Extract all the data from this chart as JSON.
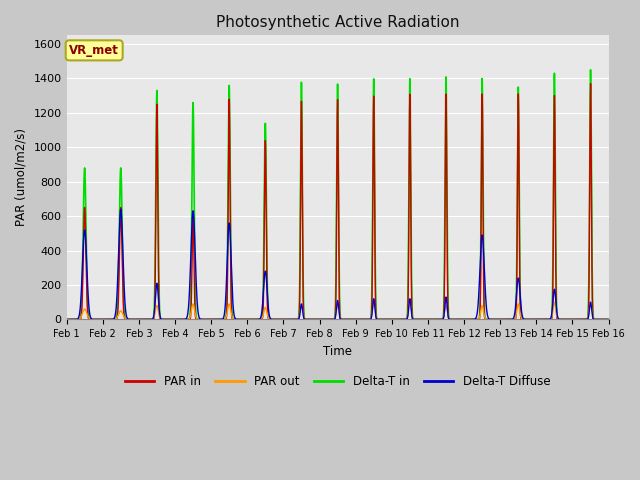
{
  "title": "Photosynthetic Active Radiation",
  "ylabel": "PAR (umol/m2/s)",
  "xlabel": "Time",
  "ylim": [
    0,
    1650
  ],
  "yticks": [
    0,
    200,
    400,
    600,
    800,
    1000,
    1200,
    1400,
    1600
  ],
  "fig_bg": "#c8c8c8",
  "axes_bg": "#e8e8e8",
  "grid_color": "#ffffff",
  "legend_labels": [
    "PAR in",
    "PAR out",
    "Delta-T in",
    "Delta-T Diffuse"
  ],
  "colors": [
    "#cc0000",
    "#ff9900",
    "#00dd00",
    "#0000cc"
  ],
  "annotation_text": "VR_met",
  "annotation_bg": "#ffff99",
  "annotation_border": "#aaa820",
  "n_days": 15,
  "par_in_peaks": [
    650,
    650,
    1250,
    630,
    1280,
    1040,
    1270,
    1280,
    1300,
    1310,
    1310,
    1310,
    1310,
    1300,
    1370
  ],
  "par_out_peaks": [
    60,
    50,
    80,
    90,
    90,
    70,
    80,
    80,
    90,
    100,
    80,
    80,
    90,
    100,
    90
  ],
  "delta_t_peaks": [
    880,
    880,
    1330,
    1260,
    1360,
    1140,
    1380,
    1370,
    1400,
    1400,
    1410,
    1400,
    1350,
    1430,
    1450
  ],
  "delta_d_peaks": [
    520,
    640,
    210,
    630,
    560,
    280,
    90,
    110,
    120,
    120,
    130,
    490,
    240,
    175,
    100
  ],
  "delta_t_widths": [
    0.04,
    0.04,
    0.03,
    0.03,
    0.03,
    0.03,
    0.025,
    0.025,
    0.025,
    0.025,
    0.025,
    0.025,
    0.025,
    0.025,
    0.025
  ],
  "par_in_widths": [
    0.035,
    0.035,
    0.025,
    0.025,
    0.025,
    0.025,
    0.022,
    0.022,
    0.022,
    0.022,
    0.022,
    0.022,
    0.022,
    0.022,
    0.022
  ],
  "delta_d_widths": [
    0.06,
    0.06,
    0.04,
    0.06,
    0.055,
    0.05,
    0.03,
    0.03,
    0.03,
    0.03,
    0.03,
    0.06,
    0.05,
    0.04,
    0.03
  ]
}
